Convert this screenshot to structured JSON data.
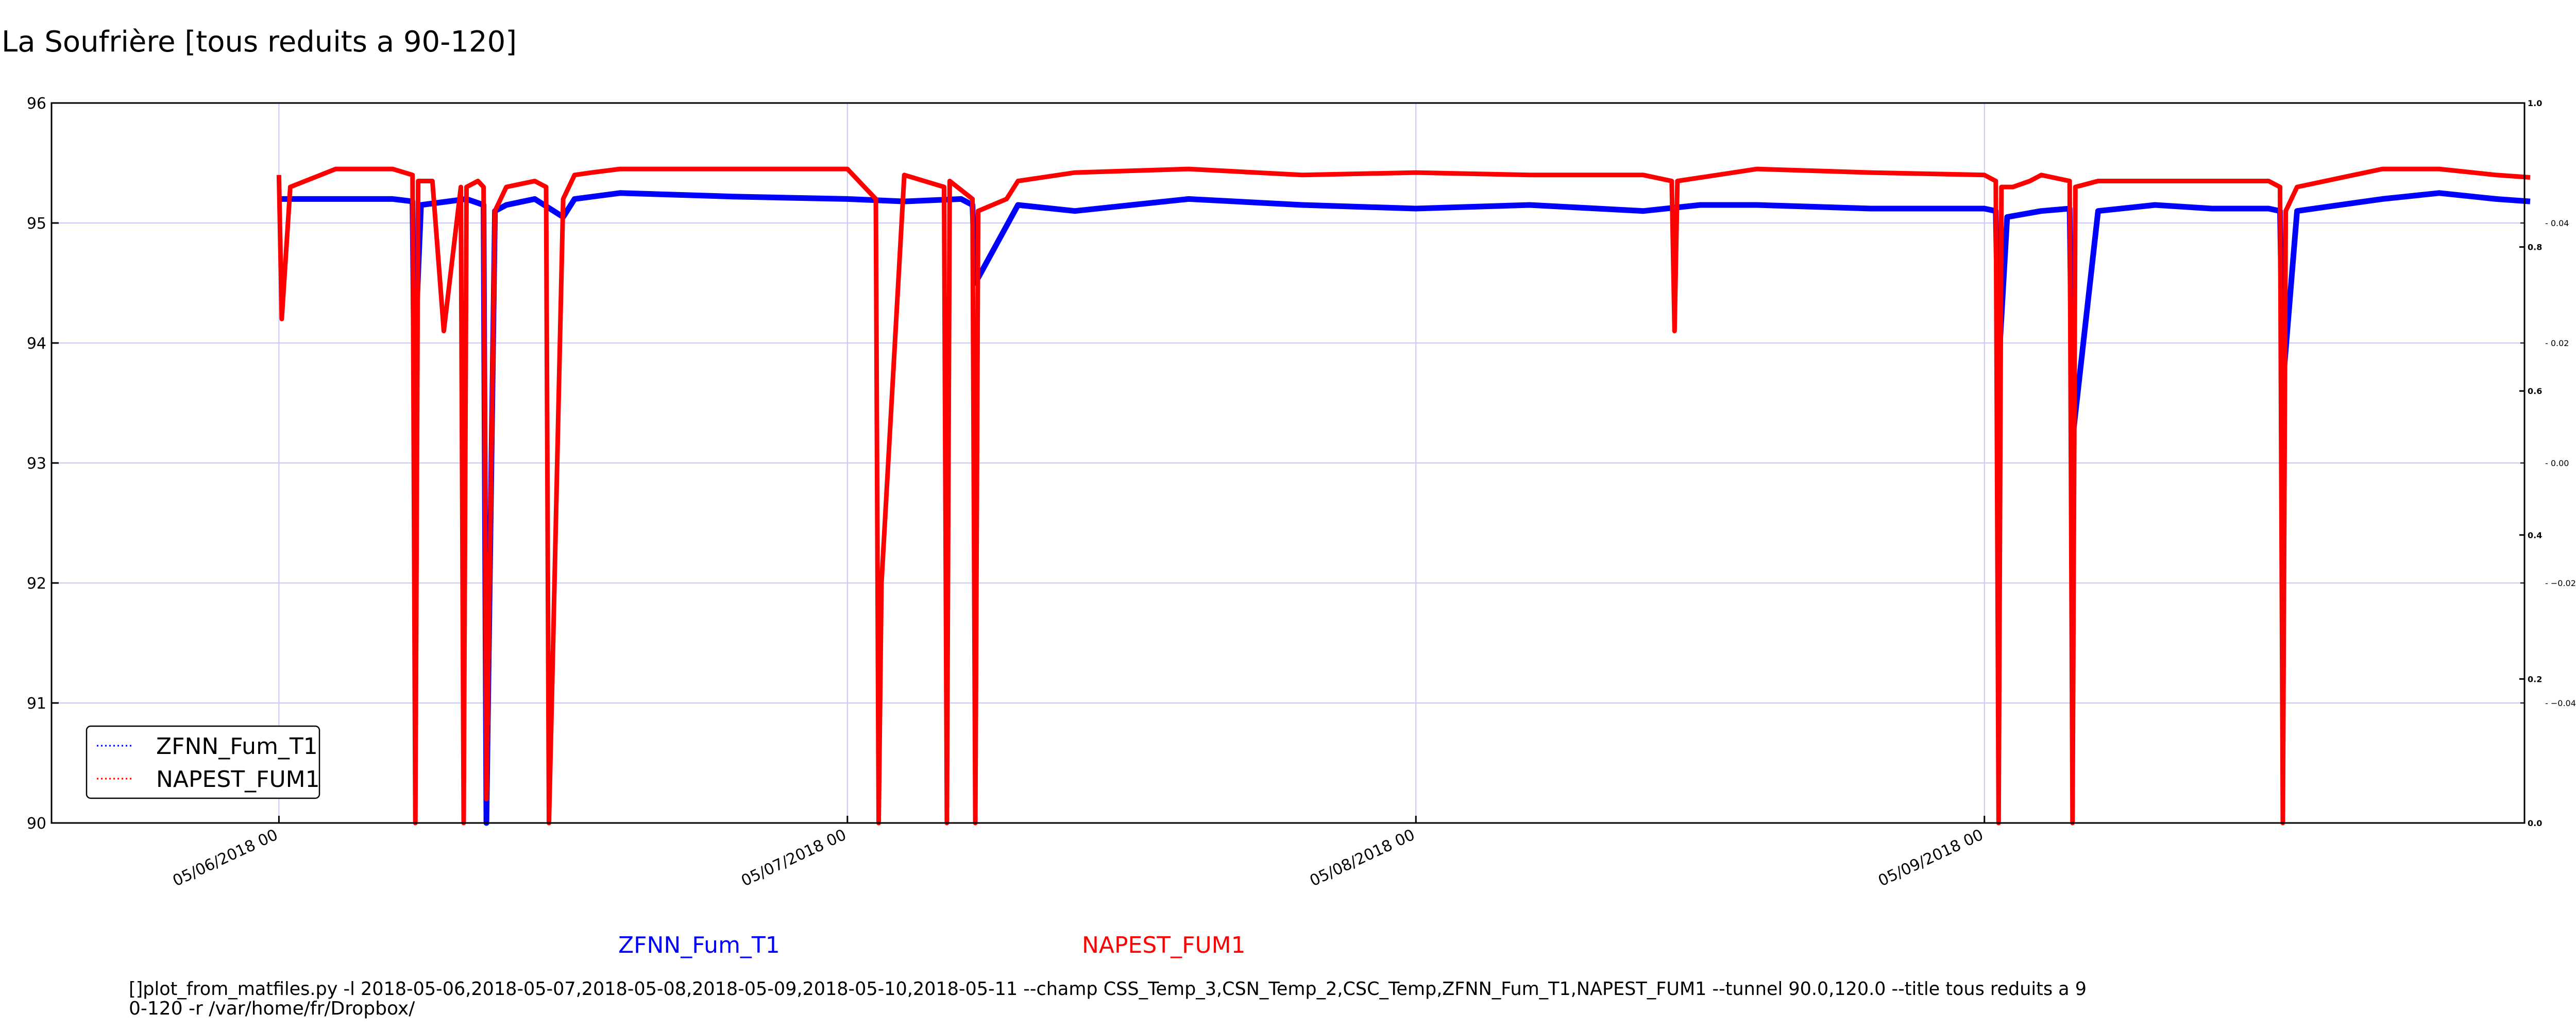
{
  "title": "La Soufrière [tous reduits a 90-120]",
  "colors": {
    "series1": "#0000ff",
    "series2": "#ff0000",
    "grid": "#c8c8ff",
    "axis": "#000000"
  },
  "legend": {
    "placement": "lower-left",
    "entries": [
      "ZFNN_Fum_T1",
      "NAPEST_FUM1"
    ]
  },
  "captions": [
    "ZFNN_Fum_T1",
    "NAPEST_FUM1"
  ],
  "command_lines": [
    "[]plot_from_matfiles.py -l 2018-05-06,2018-05-07,2018-05-08,2018-05-09,2018-05-10,2018-05-11 --champ CSS_Temp_3,CSN_Temp_2,CSC_Temp,ZFNN_Fum_T1,NAPEST_FUM1 --tunnel 90.0,120.0 --title tous reduits a 9",
    "0-120 -r /var/home/fr/Dropbox/"
  ],
  "chart_data": {
    "type": "line",
    "title": "La Soufrière [tous reduits a 90-120]",
    "xlabel": "",
    "ylabel": "",
    "x_unit": "days",
    "xlim": [
      -0.4,
      3.95
    ],
    "ylim": [
      90,
      96
    ],
    "yticks": [
      "90",
      "91",
      "92",
      "93",
      "94",
      "95",
      "96"
    ],
    "xticks": [
      {
        "x": 0,
        "label": "05/06/2018 00"
      },
      {
        "x": 1,
        "label": "05/07/2018 00"
      },
      {
        "x": 2,
        "label": "05/08/2018 00"
      },
      {
        "x": 3,
        "label": "05/09/2018 00"
      }
    ],
    "right_axis_outer": {
      "ylim": [
        0,
        1
      ],
      "ticks": [
        "0.0",
        "0.2",
        "0.4",
        "0.6",
        "0.8",
        "1.0"
      ]
    },
    "right_axis_inner": {
      "ylim": [
        -0.06,
        0.06
      ],
      "ticks": [
        "−0.04",
        "−0.02",
        "0.00",
        "0.02",
        "0.04"
      ]
    },
    "grid": true,
    "series": [
      {
        "name": "ZFNN_Fum_T1",
        "color": "#0000ff",
        "x": [
          0,
          0.1,
          0.2,
          0.235,
          0.238,
          0.25,
          0.33,
          0.36,
          0.365,
          0.38,
          0.4,
          0.45,
          0.5,
          0.52,
          0.6,
          0.8,
          1.0,
          1.1,
          1.2,
          1.22,
          1.225,
          1.3,
          1.4,
          1.5,
          1.6,
          1.8,
          2.0,
          2.2,
          2.4,
          2.5,
          2.6,
          2.8,
          3.0,
          3.02,
          3.025,
          3.04,
          3.1,
          3.15,
          3.155,
          3.2,
          3.3,
          3.4,
          3.5,
          3.52,
          3.525,
          3.55,
          3.7,
          3.8,
          3.9,
          3.96
        ],
        "y": [
          95.2,
          95.2,
          95.2,
          95.18,
          93.8,
          95.15,
          95.2,
          95.15,
          90.0,
          95.1,
          95.15,
          95.2,
          95.05,
          95.2,
          95.25,
          95.22,
          95.2,
          95.18,
          95.2,
          95.15,
          94.5,
          95.15,
          95.1,
          95.15,
          95.2,
          95.15,
          95.12,
          95.15,
          95.1,
          95.15,
          95.15,
          95.12,
          95.12,
          95.1,
          93.8,
          95.05,
          95.1,
          95.12,
          93.2,
          95.1,
          95.15,
          95.12,
          95.12,
          95.1,
          93.65,
          95.1,
          95.2,
          95.25,
          95.2,
          95.18
        ]
      },
      {
        "name": "NAPEST_FUM1",
        "color": "#ff0000",
        "x": [
          0,
          0.005,
          0.02,
          0.1,
          0.2,
          0.235,
          0.24,
          0.245,
          0.27,
          0.29,
          0.32,
          0.325,
          0.33,
          0.35,
          0.36,
          0.365,
          0.38,
          0.4,
          0.45,
          0.47,
          0.475,
          0.48,
          0.5,
          0.52,
          0.55,
          0.6,
          0.8,
          1.0,
          1.03,
          1.05,
          1.055,
          1.06,
          1.1,
          1.17,
          1.175,
          1.18,
          1.22,
          1.225,
          1.23,
          1.28,
          1.3,
          1.4,
          1.6,
          1.8,
          2.0,
          2.2,
          2.4,
          2.45,
          2.455,
          2.46,
          2.6,
          2.8,
          3.0,
          3.02,
          3.025,
          3.03,
          3.05,
          3.08,
          3.1,
          3.15,
          3.155,
          3.16,
          3.2,
          3.25,
          3.3,
          3.4,
          3.5,
          3.52,
          3.525,
          3.53,
          3.55,
          3.7,
          3.8,
          3.9,
          3.96
        ],
        "y": [
          95.4,
          94.2,
          95.3,
          95.45,
          95.45,
          95.4,
          90.0,
          95.35,
          95.35,
          94.1,
          95.3,
          90.0,
          95.3,
          95.35,
          95.3,
          90.2,
          95.1,
          95.3,
          95.35,
          95.3,
          90.0,
          91.0,
          95.2,
          95.4,
          95.42,
          95.45,
          95.45,
          95.45,
          95.3,
          95.2,
          90.0,
          92.0,
          95.4,
          95.3,
          90.0,
          95.35,
          95.2,
          90.0,
          95.1,
          95.2,
          95.35,
          95.42,
          95.45,
          95.4,
          95.42,
          95.4,
          95.4,
          95.35,
          94.1,
          95.35,
          95.45,
          95.42,
          95.4,
          95.35,
          90.0,
          95.3,
          95.3,
          95.35,
          95.4,
          95.35,
          90.0,
          95.3,
          95.35,
          95.35,
          95.35,
          95.35,
          95.35,
          95.3,
          90.0,
          95.1,
          95.3,
          95.45,
          95.45,
          95.4,
          95.38
        ]
      }
    ]
  }
}
